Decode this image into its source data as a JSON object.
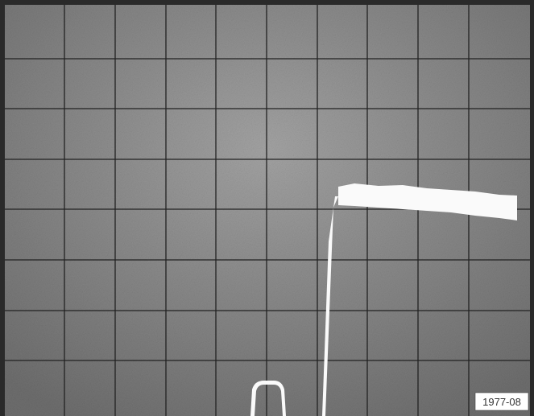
{
  "label": "1977-08"
}
